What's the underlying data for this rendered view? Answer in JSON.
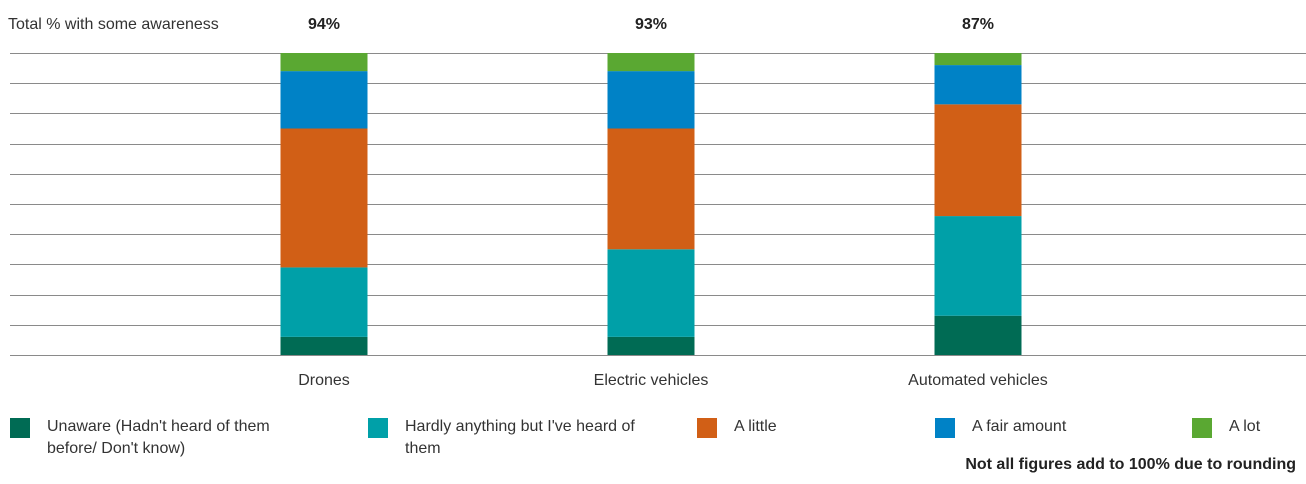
{
  "chart_data": {
    "type": "stacked_bar",
    "awareness_label": "Total % with some awareness",
    "awareness_totals": [
      94,
      93,
      87
    ],
    "awareness_value_labels": [
      "94%",
      "93%",
      "87%"
    ],
    "categories": [
      "Drones",
      "Electric vehicles",
      "Automated vehicles"
    ],
    "series": [
      {
        "name": "Unaware (Hadn't heard of them before/ Don't know)",
        "color": "#006b54",
        "values": [
          6,
          6,
          13
        ]
      },
      {
        "name": "Hardly anything but I've heard of them",
        "color": "#00a0a8",
        "values": [
          23,
          29,
          33
        ]
      },
      {
        "name": "A little",
        "color": "#d15f16",
        "values": [
          46,
          40,
          37
        ]
      },
      {
        "name": "A fair amount",
        "color": "#0082c6",
        "values": [
          19,
          19,
          13
        ]
      },
      {
        "name": "A lot",
        "color": "#5aa832",
        "values": [
          6,
          6,
          4
        ]
      }
    ],
    "ylim": [
      0,
      100
    ],
    "yticks": [
      0,
      10,
      20,
      30,
      40,
      50,
      60,
      70,
      80,
      90,
      100
    ],
    "grid": true,
    "note": "Not all figures add to 100% due to rounding"
  }
}
